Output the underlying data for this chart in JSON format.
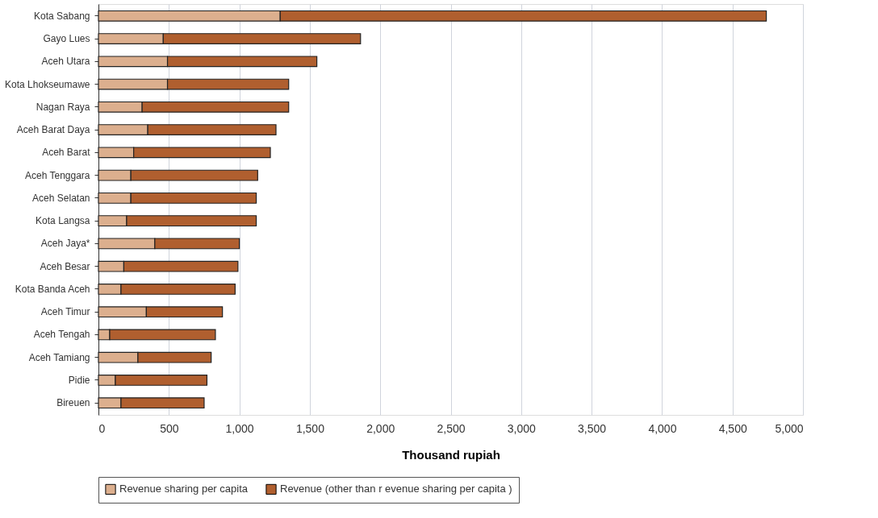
{
  "chart_data": {
    "type": "bar",
    "orientation": "horizontal",
    "stacked": true,
    "categories": [
      "Kota Sabang",
      "Gayo Lues",
      "Aceh Utara",
      "Kota Lhokseumawe",
      "Nagan Raya",
      "Aceh Barat Daya",
      "Aceh Barat",
      "Aceh Tenggara",
      "Aceh Selatan",
      "Kota Langsa",
      "Aceh Jaya*",
      "Aceh Besar",
      "Kota Banda Aceh",
      "Aceh Timur",
      "Aceh Tengah",
      "Aceh Tamiang",
      "Pidie",
      "Bireuen"
    ],
    "series": [
      {
        "name": "Revenue sharing per capita",
        "color": "#dcaf8e",
        "values": [
          1290,
          460,
          490,
          490,
          310,
          350,
          250,
          230,
          230,
          200,
          400,
          180,
          160,
          340,
          80,
          280,
          120,
          160
        ]
      },
      {
        "name": "Revenue (other than r evenue sharing per capita )",
        "color": "#b05f2f",
        "values": [
          3450,
          1400,
          1060,
          860,
          1040,
          910,
          970,
          900,
          890,
          920,
          600,
          810,
          810,
          540,
          750,
          520,
          650,
          590
        ]
      }
    ],
    "xlabel": "Thousand rupiah",
    "xlim": [
      0,
      5000
    ],
    "xticks": [
      0,
      500,
      {
        "value": 1000,
        "label": "1,000"
      },
      {
        "value": 1500,
        "label": "1,500"
      },
      {
        "value": 2000,
        "label": "2,000"
      },
      {
        "value": 2500,
        "label": "2,500"
      },
      {
        "value": 3000,
        "label": "3,000"
      },
      {
        "value": 3500,
        "label": "3,500"
      },
      {
        "value": 4000,
        "label": "4,000"
      },
      {
        "value": 4500,
        "label": "4,500"
      },
      {
        "value": 5000,
        "label": "5,000"
      }
    ],
    "grid": "x",
    "legend": "bottom"
  }
}
